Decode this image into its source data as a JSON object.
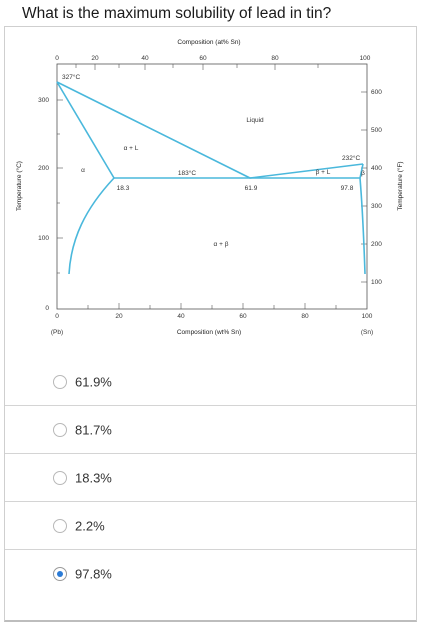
{
  "question": "What is the maximum solubility of lead in tin?",
  "diagram": {
    "top_axis_title": "Composition (at% Sn)",
    "top_ticks": [
      "0",
      "20",
      "40",
      "60",
      "80",
      "100"
    ],
    "bottom_axis_title": "Composition (wt% Sn)",
    "bottom_ticks": [
      "0",
      "20",
      "40",
      "60",
      "80",
      "100"
    ],
    "left_axis_title": "Temperature (°C)",
    "left_ticks": [
      "0",
      "100",
      "200",
      "300"
    ],
    "right_axis_title": "Temperature (°F)",
    "right_ticks": [
      "100",
      "200",
      "300",
      "400",
      "500",
      "600"
    ],
    "end_label_left": "(Pb)",
    "end_label_right": "(Sn)",
    "labels": {
      "pb_melt": "327°C",
      "sn_melt": "232°C",
      "eutectic_temp": "183°C",
      "liquid": "Liquid",
      "alpha_plus_L": "α + L",
      "beta_plus_L": "β + L",
      "alpha": "α",
      "beta": "β",
      "alpha_plus_beta": "α + β",
      "comp_alpha": "18.3",
      "comp_eutectic": "61.9",
      "comp_beta": "97.8"
    },
    "chart_data": {
      "type": "line",
      "xlabel": "Composition (wt% Sn)",
      "ylabel": "Temperature (°C)",
      "xlim": [
        0,
        100
      ],
      "ylim": [
        0,
        340
      ],
      "series": [
        {
          "x": [
            0,
            61.9,
            100
          ],
          "y": [
            327,
            183,
            232
          ]
        },
        {
          "x": [
            0,
            18.3
          ],
          "y": [
            327,
            183
          ]
        },
        {
          "x": [
            100,
            97.8
          ],
          "y": [
            232,
            183
          ]
        },
        {
          "x": [
            18.3,
            97.8
          ],
          "y": [
            183,
            183
          ]
        },
        {
          "x": [
            18.3,
            12,
            6,
            3
          ],
          "y": [
            183,
            150,
            100,
            50
          ]
        },
        {
          "x": [
            97.8,
            98.8,
            99.3,
            99.5
          ],
          "y": [
            183,
            150,
            100,
            50
          ]
        }
      ]
    }
  },
  "options": [
    {
      "label": "61.9%",
      "selected": false
    },
    {
      "label": "81.7%",
      "selected": false
    },
    {
      "label": "18.3%",
      "selected": false
    },
    {
      "label": "2.2%",
      "selected": false
    },
    {
      "label": "97.8%",
      "selected": true
    }
  ],
  "colors": {
    "phase_line": "#4ab8dc",
    "accent": "#2b7bd6"
  }
}
